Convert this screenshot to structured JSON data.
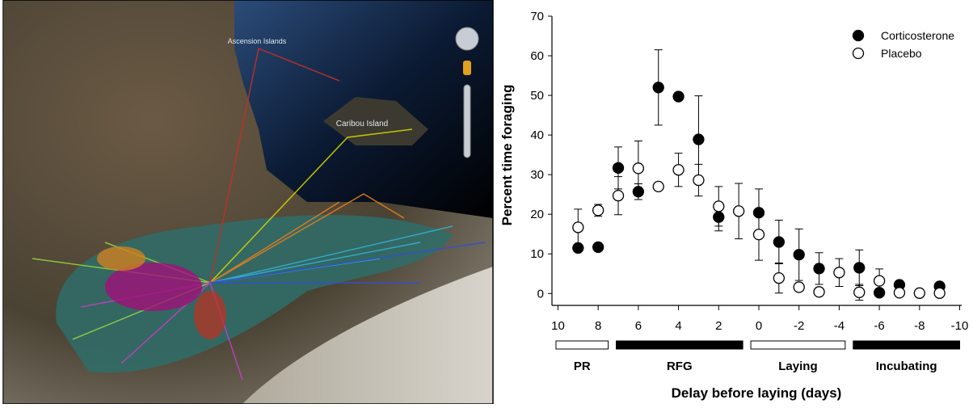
{
  "map": {
    "labels": [
      "Ascension Islands",
      "Caribou Island"
    ]
  },
  "chart_data": {
    "type": "scatter",
    "ylabel": "Percent time foraging",
    "xlabel": "Delay before laying (days)",
    "xlim": [
      10.3,
      -10.1
    ],
    "xticks": [
      10,
      8,
      6,
      4,
      2,
      0,
      -2,
      -4,
      -6,
      -8,
      -10
    ],
    "ylim": [
      -3,
      70
    ],
    "yticks": [
      0,
      10,
      20,
      30,
      40,
      50,
      60,
      70
    ],
    "legend": "upper right",
    "series": [
      {
        "name": "Corticosterone",
        "color": "#000000",
        "filled": true,
        "x": [
          9,
          8,
          7,
          6,
          5,
          4,
          3,
          2,
          0,
          -1,
          -2,
          -3,
          -5,
          -6,
          -7,
          -9
        ],
        "values": [
          11.5,
          11.7,
          31.7,
          25.7,
          52,
          49.7,
          38.9,
          19.3,
          20.4,
          13,
          9.8,
          6.3,
          6.5,
          0.2,
          2.2,
          1.8
        ],
        "errors": [
          0,
          0,
          5.3,
          2,
          9.5,
          0,
          11,
          3.5,
          6,
          5.5,
          6.5,
          4,
          4.5,
          0,
          0.5,
          0.3
        ]
      },
      {
        "name": "Placebo",
        "color": "#000000",
        "filled": false,
        "x": [
          9,
          8,
          7,
          6,
          5,
          4,
          3,
          2,
          1,
          0,
          -1,
          -2,
          -3,
          -4,
          -5,
          -6,
          -7,
          -8,
          -9
        ],
        "values": [
          16.7,
          21,
          24.7,
          31.6,
          27,
          31.2,
          28.6,
          22,
          20.8,
          14.9,
          3.9,
          1.6,
          0.4,
          5.3,
          0.3,
          3.2,
          0.2,
          0.1,
          0.1
        ],
        "errors": [
          4.6,
          1.5,
          4.8,
          6.9,
          1,
          4.2,
          4,
          5,
          7,
          6.5,
          3.8,
          1,
          0,
          3.5,
          2,
          3,
          0,
          0,
          0
        ]
      }
    ],
    "periods": [
      {
        "label": "PR",
        "start": 10.1,
        "end": 7.5,
        "color": "#ffffff"
      },
      {
        "label": "RFG",
        "start": 7.1,
        "end": 0.8,
        "color": "#000000"
      },
      {
        "label": "Laying",
        "start": 0.4,
        "end": -4.3,
        "color": "#ffffff"
      },
      {
        "label": "Incubating",
        "start": -4.7,
        "end": -10,
        "color": "#000000"
      }
    ]
  }
}
